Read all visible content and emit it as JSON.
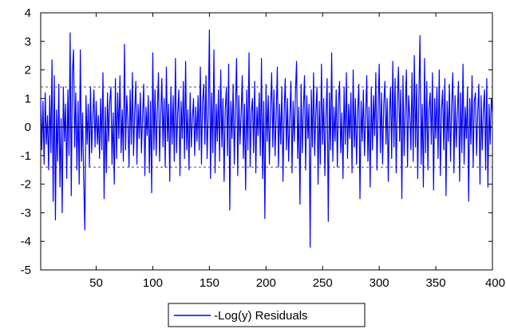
{
  "chart_data": {
    "type": "line",
    "title": "",
    "xlabel": "",
    "ylabel": "",
    "xlim": [
      1,
      400
    ],
    "ylim": [
      -5,
      4
    ],
    "x_ticks": [
      50,
      100,
      150,
      200,
      250,
      300,
      350,
      400
    ],
    "y_ticks": [
      -5,
      -4,
      -3,
      -2,
      -1,
      0,
      1,
      2,
      3,
      4
    ],
    "x_tick_labels": [
      "50",
      "100",
      "150",
      "200",
      "250",
      "300",
      "350",
      "400"
    ],
    "y_tick_labels": [
      "-5",
      "-4",
      "-3",
      "-2",
      "-1",
      "0",
      "1",
      "2",
      "3",
      "4"
    ],
    "reference_lines": [
      {
        "y": 1.4,
        "style": "dashed"
      },
      {
        "y": 0,
        "style": "solid"
      },
      {
        "y": -1.4,
        "style": "dashed"
      }
    ],
    "grid": false,
    "legend": {
      "placement": "bottom-center"
    },
    "series": [
      {
        "name": "-Log(y) Residuals",
        "color": "#0000ff",
        "x_start": 1,
        "x_step": 1,
        "values": [
          1.0,
          -0.8,
          0.9,
          -1.3,
          1.2,
          -0.6,
          0.4,
          -1.5,
          1.1,
          -0.9,
          2.35,
          -2.6,
          1.8,
          -3.25,
          0.6,
          -1.2,
          1.5,
          -2.1,
          0.3,
          -3.0,
          1.4,
          -0.5,
          0.8,
          -1.8,
          1.3,
          -1.0,
          3.3,
          -2.4,
          1.9,
          2.7,
          -0.7,
          1.2,
          -1.5,
          0.9,
          -2.0,
          2.7,
          -1.2,
          0.5,
          -1.9,
          -3.6,
          1.1,
          -0.6,
          0.8,
          -1.4,
          1.4,
          -0.9,
          0.3,
          1.3,
          -0.7,
          0.9,
          -0.6,
          0.4,
          -1.1,
          1.0,
          -0.8,
          1.9,
          -2.5,
          0.7,
          -1.6,
          1.2,
          -0.5,
          0.9,
          1.4,
          -1.3,
          0.5,
          -2.0,
          1.7,
          -1.1,
          1.2,
          -0.4,
          1.8,
          -0.9,
          0.6,
          -1.2,
          2.9,
          -0.8,
          1.1,
          0.3,
          -1.4,
          1.3,
          -0.6,
          1.9,
          -1.0,
          0.5,
          1.6,
          -1.3,
          0.8,
          -0.4,
          1.2,
          -0.9,
          0.4,
          1.5,
          -1.7,
          0.7,
          -0.3,
          1.1,
          -1.6,
          0.9,
          -2.3,
          2.6,
          -0.8,
          1.3,
          -1.0,
          0.6,
          1.9,
          -1.2,
          0.4,
          1.7,
          -0.7,
          1.0,
          -1.4,
          2.1,
          -0.5,
          0.8,
          -1.9,
          1.4,
          -0.6,
          1.1,
          -1.2,
          2.4,
          -0.9,
          0.5,
          1.3,
          -1.7,
          0.9,
          -0.4,
          1.6,
          -1.1,
          2.3,
          -0.8,
          0.6,
          -1.5,
          1.2,
          -0.7,
          0.3,
          1.0,
          -1.0,
          0.7,
          -0.5,
          1.1,
          -0.8,
          2.1,
          -1.3,
          0.9,
          1.5,
          -0.6,
          1.8,
          -1.1,
          0.5,
          3.4,
          -1.8,
          1.2,
          -0.9,
          2.7,
          -1.6,
          0.8,
          -0.5,
          1.3,
          -1.2,
          2.0,
          -0.7,
          1.0,
          -1.9,
          0.6,
          1.4,
          -1.0,
          2.2,
          -2.9,
          0.9,
          -0.4,
          1.5,
          -1.3,
          0.7,
          2.4,
          -1.7,
          1.1,
          -0.6,
          0.4,
          1.8,
          -1.1,
          0.8,
          -2.2,
          1.3,
          -0.8,
          2.6,
          -1.4,
          0.5,
          1.0,
          -0.9,
          1.6,
          -1.6,
          0.7,
          -0.3,
          1.2,
          -1.0,
          2.4,
          -1.8,
          0.9,
          -3.2,
          1.5,
          -0.5,
          1.1,
          -1.3,
          0.6,
          1.9,
          -0.7,
          1.3,
          -1.0,
          0.4,
          2.1,
          -1.4,
          0.8,
          -0.6,
          1.4,
          -1.9,
          0.5,
          1.7,
          -0.8,
          1.0,
          -1.2,
          0.3,
          1.6,
          -1.6,
          0.9,
          -0.5,
          1.2,
          2.3,
          -1.1,
          0.7,
          -2.7,
          1.5,
          -0.9,
          0.6,
          1.8,
          -1.5,
          1.1,
          -0.4,
          0.8,
          -4.2,
          1.3,
          -0.7,
          1.9,
          -1.0,
          0.5,
          1.4,
          -2.0,
          0.9,
          -1.3,
          2.2,
          -0.6,
          1.0,
          -1.7,
          0.4,
          1.7,
          -3.3,
          1.2,
          -0.8,
          2.6,
          -1.2,
          0.7,
          -0.5,
          1.3,
          -1.4,
          0.9,
          1.6,
          -0.9,
          0.5,
          -1.8,
          1.4,
          -0.6,
          1.9,
          -1.1,
          0.8,
          -0.4,
          1.2,
          -1.6,
          2.0,
          -0.7,
          1.0,
          -1.3,
          0.6,
          1.5,
          -2.5,
          0.9,
          -0.5,
          1.3,
          -1.0,
          0.4,
          1.8,
          -1.2,
          0.7,
          -2.1,
          1.4,
          -0.8,
          1.1,
          -0.3,
          1.9,
          -1.5,
          0.6,
          2.2,
          -0.9,
          1.2,
          -1.3,
          0.8,
          1.6,
          -0.6,
          1.0,
          -1.9,
          0.5,
          1.4,
          -1.1,
          2.3,
          -0.7,
          1.7,
          -1.6,
          0.9,
          2.1,
          -0.5,
          1.3,
          -2.5,
          1.8,
          -1.0,
          0.6,
          2.0,
          -1.4,
          1.1,
          0.4,
          -0.8,
          1.9,
          -1.2,
          2.5,
          -0.7,
          1.5,
          -1.8,
          1.0,
          3.2,
          -1.3,
          0.8,
          -2.1,
          2.4,
          -0.9,
          1.6,
          -1.5,
          0.7,
          1.2,
          -0.6,
          1.9,
          -2.2,
          1.0,
          -0.4,
          1.4,
          -1.1,
          2.0,
          -1.7,
          0.6,
          1.3,
          -0.8,
          1.7,
          -2.4,
          0.9,
          -0.5,
          1.5,
          -1.2,
          0.8,
          1.9,
          -1.6,
          1.1,
          -0.7,
          0.5,
          1.6,
          -1.9,
          1.2,
          -0.9,
          2.2,
          -1.3,
          0.7,
          -0.4,
          1.4,
          -2.6,
          1.0,
          -0.6,
          1.8,
          -1.4,
          0.9,
          1.2,
          -1.0,
          0.5,
          1.5,
          -2.0,
          1.1,
          -0.8,
          0.6,
          1.3,
          -1.5,
          1.7,
          -2.1,
          0.8,
          -0.6,
          1.0,
          0.5
        ]
      }
    ]
  }
}
